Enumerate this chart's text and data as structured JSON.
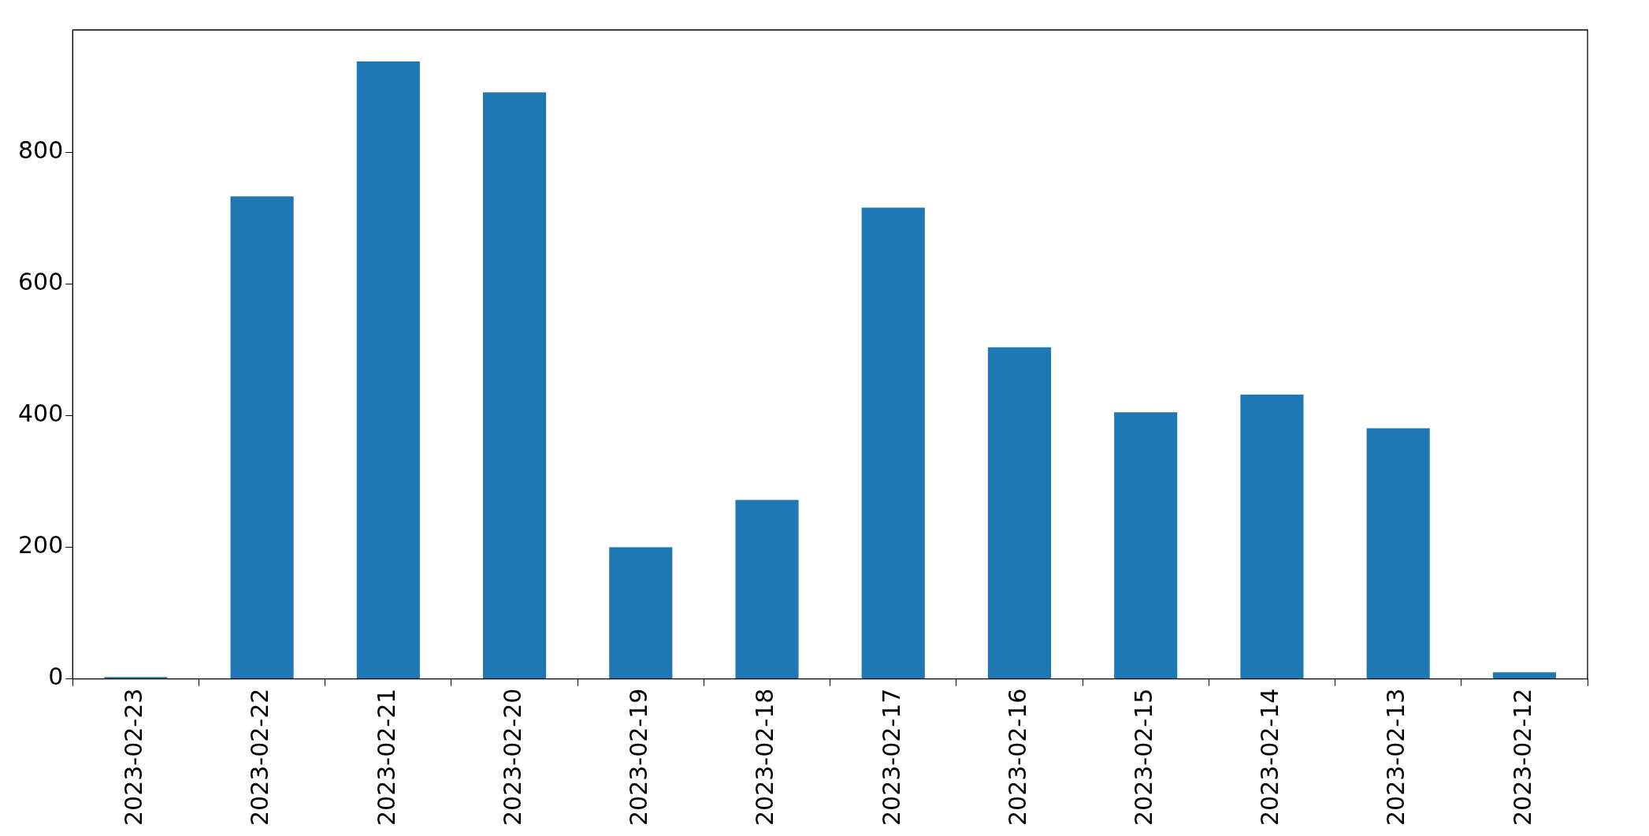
{
  "chart_data": {
    "type": "bar",
    "categories": [
      "2023-02-23",
      "2023-02-22",
      "2023-02-21",
      "2023-02-20",
      "2023-02-19",
      "2023-02-18",
      "2023-02-17",
      "2023-02-16",
      "2023-02-15",
      "2023-02-14",
      "2023-02-13",
      "2023-02-12"
    ],
    "values": [
      3,
      733,
      938,
      891,
      200,
      272,
      716,
      504,
      405,
      432,
      381,
      10
    ],
    "color": "#1f77b4",
    "ylim": [
      0,
      986
    ],
    "yticks": [
      0,
      200,
      400,
      600,
      800
    ],
    "grid": false,
    "legend": false
  }
}
